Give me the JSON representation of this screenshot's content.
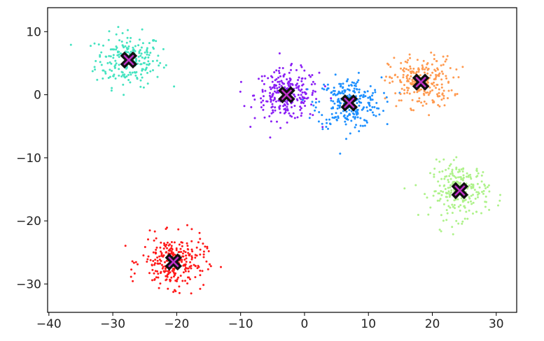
{
  "chart_data": {
    "type": "scatter",
    "title": "",
    "xlabel": "",
    "ylabel": "",
    "xlim": [
      -40.2,
      33.2
    ],
    "ylim": [
      -34.5,
      13.8
    ],
    "xticks": [
      -40,
      -30,
      -20,
      -10,
      0,
      10,
      20,
      30
    ],
    "xtick_labels": [
      "−40",
      "−30",
      "−20",
      "−10",
      "0",
      "10",
      "20",
      "30"
    ],
    "yticks": [
      -30,
      -20,
      -10,
      0,
      10
    ],
    "ytick_labels": [
      "−30",
      "−20",
      "−10",
      "0",
      "10"
    ],
    "grid": false,
    "legend": "none",
    "clusters": [
      {
        "center": [
          -27.5,
          5.5
        ],
        "spread": [
          2.6,
          2.1
        ],
        "count": 220,
        "color": "#44e3c0"
      },
      {
        "center": [
          -2.8,
          0.0
        ],
        "spread": [
          2.5,
          2.0
        ],
        "count": 260,
        "color": "#8a1ef5"
      },
      {
        "center": [
          7.0,
          -1.3
        ],
        "spread": [
          2.5,
          2.0
        ],
        "count": 260,
        "color": "#1e90ff"
      },
      {
        "center": [
          18.2,
          2.0
        ],
        "spread": [
          2.5,
          2.0
        ],
        "count": 240,
        "color": "#ff9a50"
      },
      {
        "center": [
          24.3,
          -15.2
        ],
        "spread": [
          2.3,
          2.2
        ],
        "count": 240,
        "color": "#aef28a"
      },
      {
        "center": [
          -20.5,
          -26.5
        ],
        "spread": [
          2.5,
          2.0
        ],
        "count": 280,
        "color": "#ff1a1a"
      }
    ],
    "centroids": [
      {
        "x": -27.5,
        "y": 5.5
      },
      {
        "x": -2.8,
        "y": 0.0
      },
      {
        "x": 7.0,
        "y": -1.3
      },
      {
        "x": 18.2,
        "y": 2.0
      },
      {
        "x": 24.3,
        "y": -15.2
      },
      {
        "x": -20.5,
        "y": -26.5
      }
    ],
    "centroid_marker": {
      "fill": "#c030c8",
      "edge": "#111111"
    }
  }
}
